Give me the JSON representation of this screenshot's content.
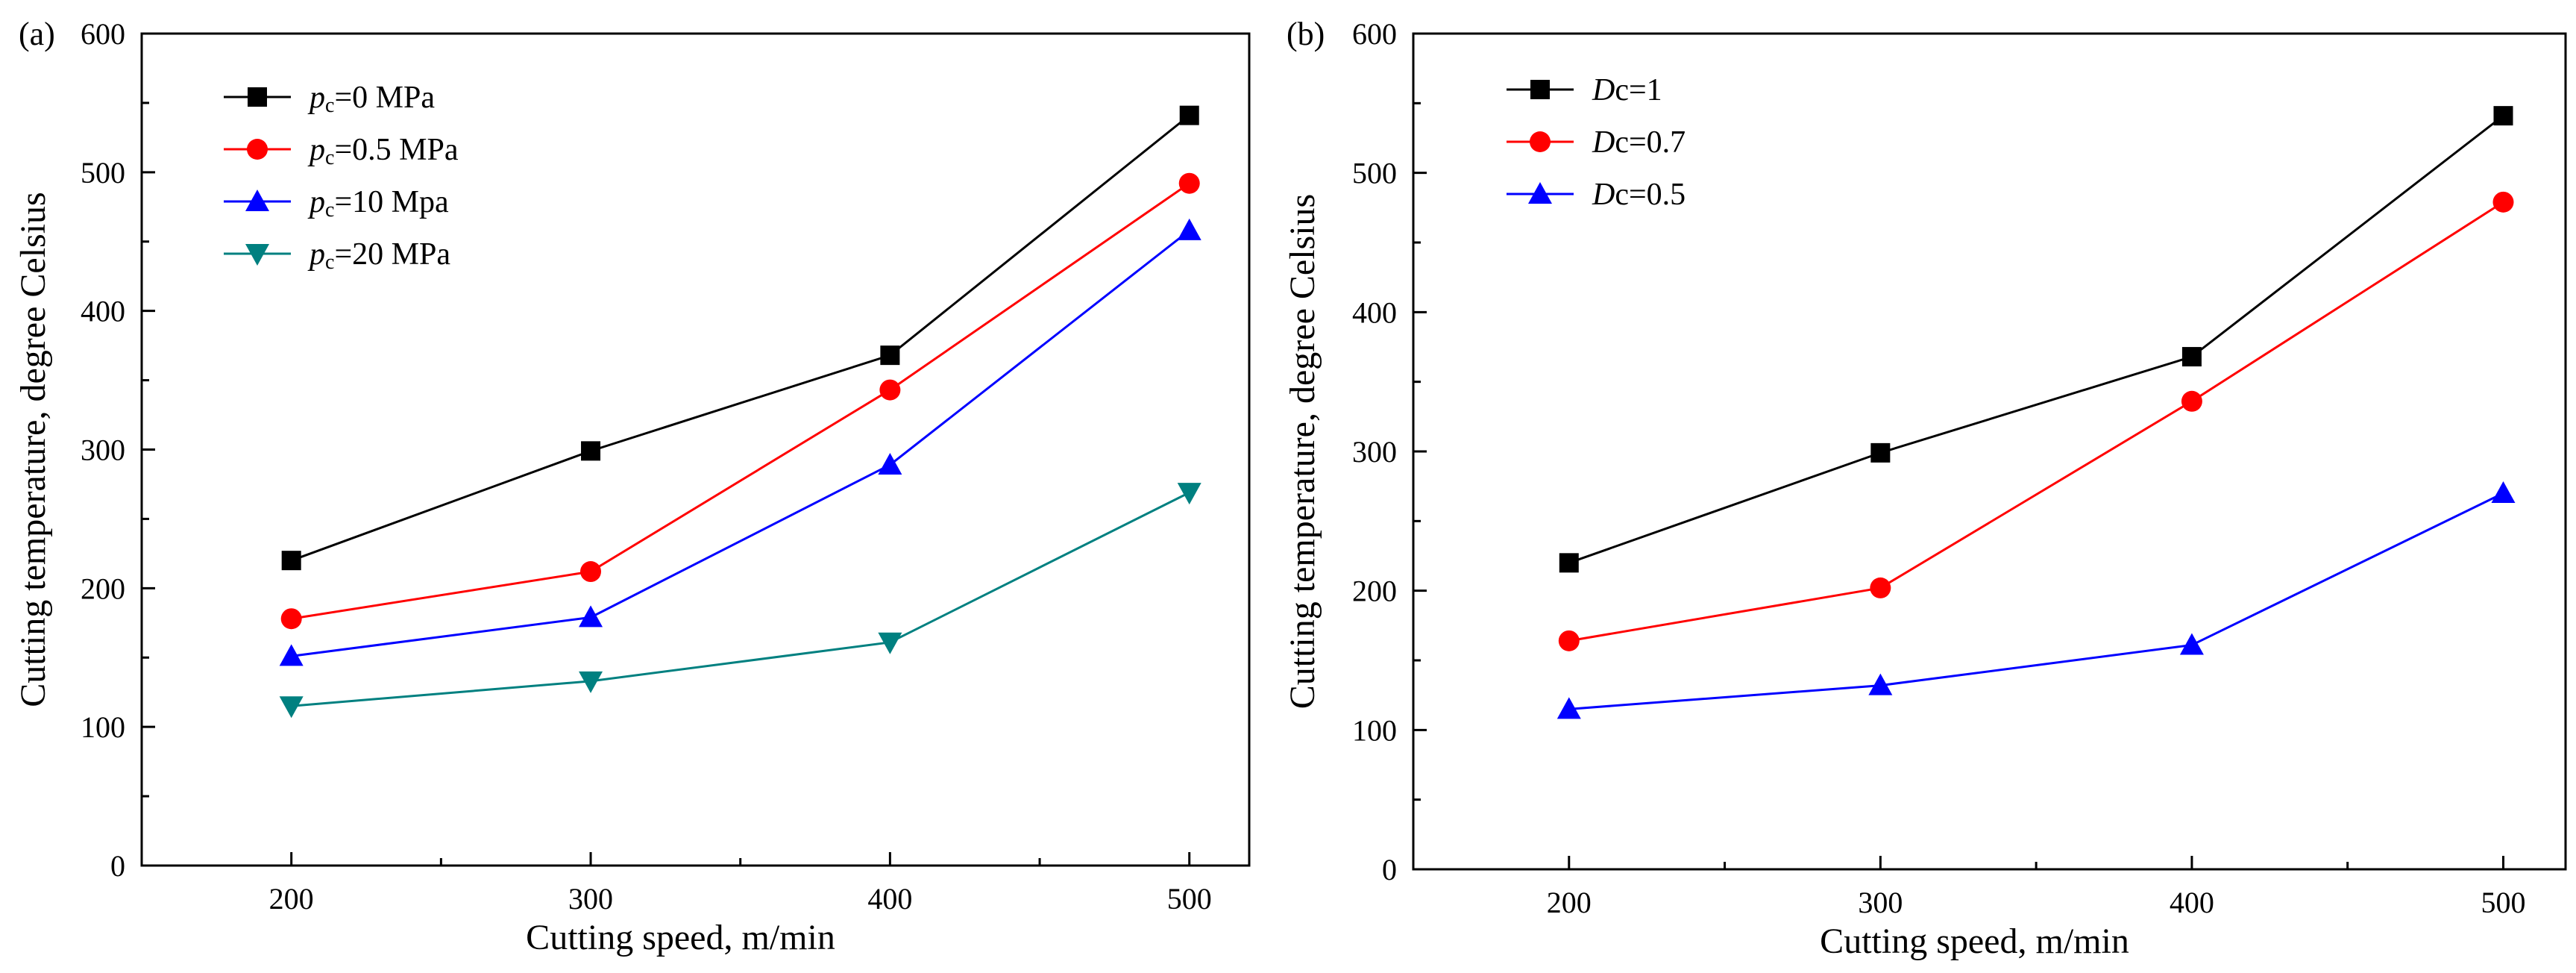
{
  "chart_data": [
    {
      "type": "line",
      "panel_label": "(a)",
      "xlabel": "Cutting speed, m/min",
      "ylabel": "Cutting temperature, degree Celsius",
      "x": [
        200,
        300,
        400,
        500
      ],
      "xticks": [
        200,
        300,
        400,
        500
      ],
      "yticks": [
        0,
        100,
        200,
        300,
        400,
        500,
        600
      ],
      "xlim": [
        150,
        520
      ],
      "ylim": [
        0,
        600
      ],
      "legend_position": "top-left",
      "series": [
        {
          "name": "pc=0 MPa",
          "legend_main": "p",
          "legend_sub": "c",
          "legend_rest": "=0 MPa",
          "color": "#000000",
          "marker": "square",
          "values": [
            220,
            299,
            368,
            541
          ]
        },
        {
          "name": "pc=0.5 MPa",
          "legend_main": "p",
          "legend_sub": "c",
          "legend_rest": "=0.5 MPa",
          "color": "#ff0000",
          "marker": "circle",
          "values": [
            178,
            212,
            343,
            492
          ]
        },
        {
          "name": "pc=10 Mpa",
          "legend_main": "p",
          "legend_sub": "c",
          "legend_rest": "=10 Mpa",
          "color": "#0000ff",
          "marker": "triangle-up",
          "values": [
            151,
            179,
            289,
            458
          ]
        },
        {
          "name": "pc=20 MPa",
          "legend_main": "p",
          "legend_sub": "c",
          "legend_rest": "=20 MPa",
          "color": "#008080",
          "marker": "triangle-down",
          "values": [
            115,
            133,
            161,
            269
          ]
        }
      ]
    },
    {
      "type": "line",
      "panel_label": "(b)",
      "xlabel": "Cutting speed, m/min",
      "ylabel": "Cutting temperature, degree Celsius",
      "x": [
        200,
        300,
        400,
        500
      ],
      "xticks": [
        200,
        300,
        400,
        500
      ],
      "yticks": [
        0,
        100,
        200,
        300,
        400,
        500,
        600
      ],
      "xlim": [
        150,
        520
      ],
      "ylim": [
        0,
        600
      ],
      "legend_position": "top-left",
      "series": [
        {
          "name": "Dc=1",
          "legend_main": "D",
          "legend_sub": "",
          "legend_rest": "c=1",
          "color": "#000000",
          "marker": "square",
          "values": [
            220,
            299,
            368,
            541
          ]
        },
        {
          "name": "Dc=0.7",
          "legend_main": "D",
          "legend_sub": "",
          "legend_rest": "c=0.7",
          "color": "#ff0000",
          "marker": "circle",
          "values": [
            164,
            202,
            336,
            479
          ]
        },
        {
          "name": "Dc=0.5",
          "legend_main": "D",
          "legend_sub": "",
          "legend_rest": "c=0.5",
          "color": "#0000ff",
          "marker": "triangle-up",
          "values": [
            115,
            132,
            161,
            270
          ]
        }
      ]
    }
  ]
}
